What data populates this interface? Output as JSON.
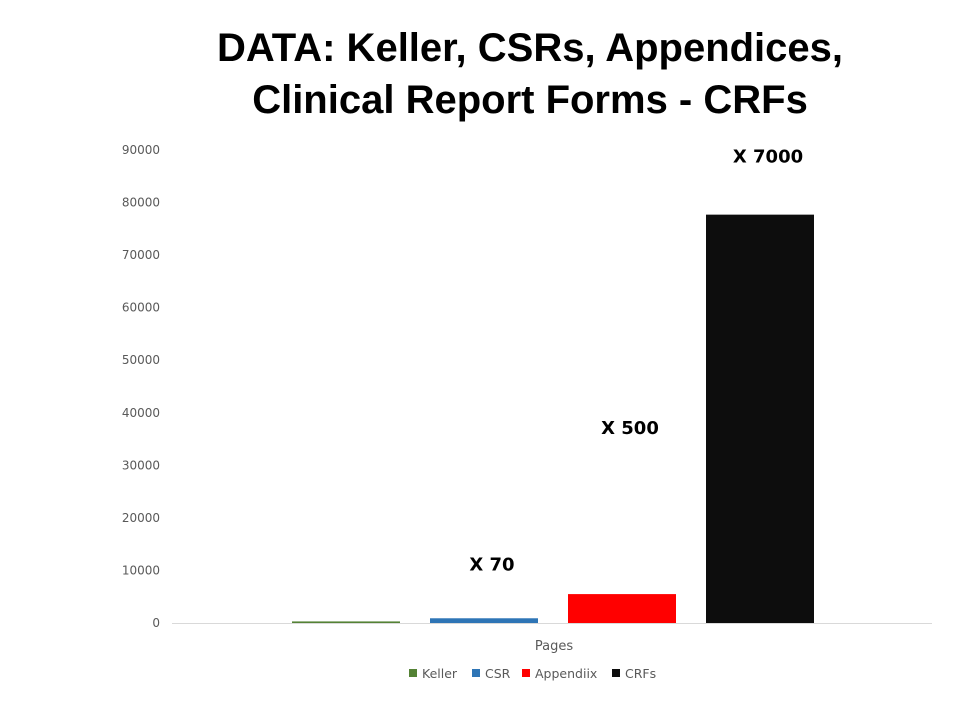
{
  "title": {
    "line1": "DATA: Keller, CSRs, Appendices,",
    "line2": "Clinical Report Forms - CRFs"
  },
  "chart_data": {
    "type": "bar",
    "title": "DATA: Keller, CSRs, Appendices, Clinical Report Forms - CRFs",
    "categories": [
      "Pages"
    ],
    "series": [
      {
        "name": "Keller",
        "values": [
          300
        ],
        "color": "#548235"
      },
      {
        "name": "CSR",
        "values": [
          900
        ],
        "color": "#2e75b6"
      },
      {
        "name": "Appendiix",
        "values": [
          5500
        ],
        "color": "#ff0000"
      },
      {
        "name": "CRFs",
        "values": [
          77700
        ],
        "color": "#0d0d0d"
      }
    ],
    "ylim": [
      0,
      90000
    ],
    "yticks": [
      0,
      10000,
      20000,
      30000,
      40000,
      50000,
      60000,
      70000,
      80000,
      90000
    ],
    "ytick_labels": [
      "0",
      "10000",
      "20000",
      "30000",
      "40000",
      "50000",
      "60000",
      "70000",
      "80000",
      "90000"
    ],
    "annotations": [
      {
        "text": "X 70",
        "series": "CSR"
      },
      {
        "text": "X 500",
        "series": "Appendiix"
      },
      {
        "text": "X 7000",
        "series": "CRFs"
      }
    ],
    "grid": false,
    "legend_position": "bottom"
  }
}
